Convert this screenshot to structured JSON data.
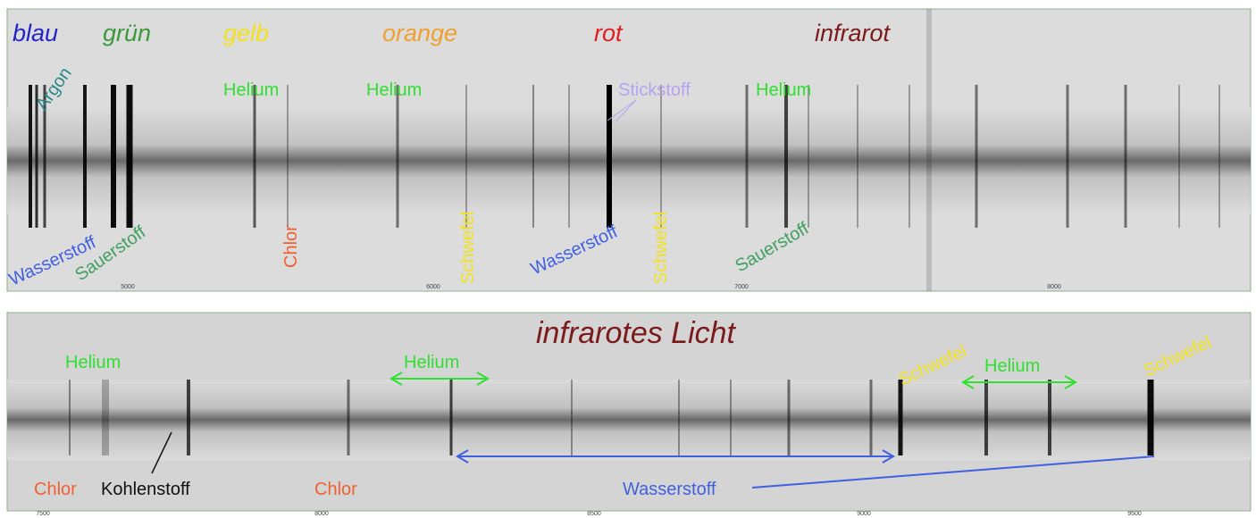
{
  "top_panel": {
    "color_names": [
      "blau",
      "grün",
      "gelb",
      "orange",
      "rot",
      "infrarot"
    ],
    "line_labels": [
      "Argon",
      "Helium",
      "Helium",
      "Stickstoff",
      "Helium",
      "Wasserstoff",
      "Sauerstoff",
      "Chlor",
      "Schwefel",
      "Wasserstoff",
      "Schwefel",
      "Sauerstoff"
    ],
    "axis_ticks": [
      "5000",
      "6000",
      "7000",
      "8000"
    ]
  },
  "bottom_panel": {
    "title": "infrarotes Licht",
    "line_labels": [
      "Helium",
      "Helium",
      "Schwefel",
      "Helium",
      "Schwefel",
      "Chlor",
      "Kohlenstoff",
      "Chlor",
      "Wasserstoff"
    ],
    "axis_ticks": [
      "7500",
      "8000",
      "8500",
      "9000",
      "9500"
    ]
  }
}
